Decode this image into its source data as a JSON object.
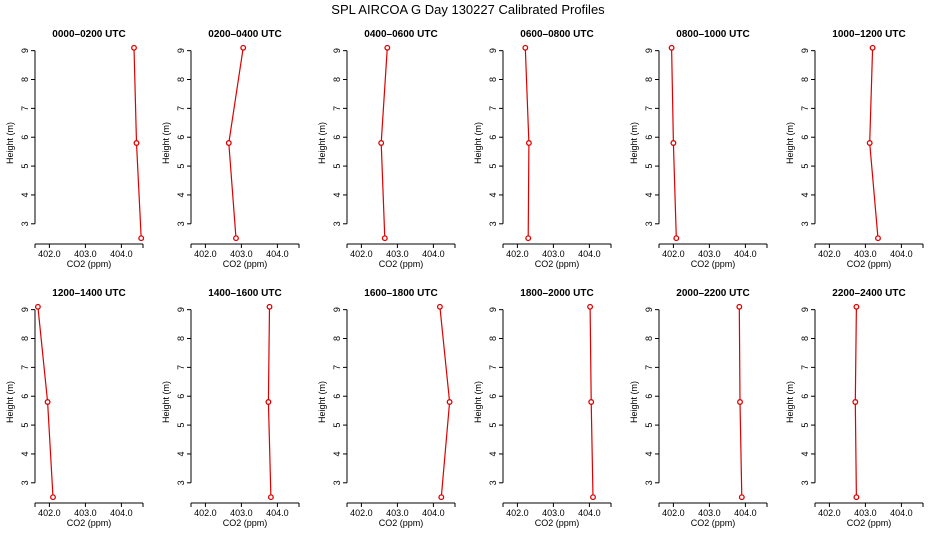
{
  "title": "SPL AIRCOA G  Day 130227  Calibrated Profiles",
  "colors": {
    "series": "#dd0000"
  },
  "chart_data": [
    {
      "type": "line",
      "title": "0000–0200 UTC",
      "xlabel": "CO2 (ppm)",
      "ylabel": "Height (m)",
      "xlim": [
        401.6,
        404.6
      ],
      "ylim": [
        2.3,
        9.3
      ],
      "xticks": [
        402.0,
        403.0,
        404.0
      ],
      "xtick_labels": [
        "402.0",
        "403.0",
        "404.0"
      ],
      "yticks": [
        3,
        4,
        5,
        6,
        7,
        8,
        9
      ],
      "ytick_labels": [
        "3",
        "4",
        "5",
        "6",
        "7",
        "8",
        "9"
      ],
      "series": [
        {
          "x": [
            404.55,
            404.42,
            404.35
          ],
          "y": [
            2.5,
            5.8,
            9.1
          ]
        }
      ]
    },
    {
      "type": "line",
      "title": "0200–0400 UTC",
      "xlabel": "CO2 (ppm)",
      "ylabel": "Height (m)",
      "xlim": [
        401.6,
        404.6
      ],
      "ylim": [
        2.3,
        9.3
      ],
      "xticks": [
        402.0,
        403.0,
        404.0
      ],
      "xtick_labels": [
        "402.0",
        "403.0",
        "404.0"
      ],
      "yticks": [
        3,
        4,
        5,
        6,
        7,
        8,
        9
      ],
      "ytick_labels": [
        "3",
        "4",
        "5",
        "6",
        "7",
        "8",
        "9"
      ],
      "series": [
        {
          "x": [
            402.85,
            402.65,
            403.05
          ],
          "y": [
            2.5,
            5.8,
            9.1
          ]
        }
      ]
    },
    {
      "type": "line",
      "title": "0400–0600 UTC",
      "xlabel": "CO2 (ppm)",
      "ylabel": "Height (m)",
      "xlim": [
        401.6,
        404.6
      ],
      "ylim": [
        2.3,
        9.3
      ],
      "xticks": [
        402.0,
        403.0,
        404.0
      ],
      "xtick_labels": [
        "402.0",
        "403.0",
        "404.0"
      ],
      "yticks": [
        3,
        4,
        5,
        6,
        7,
        8,
        9
      ],
      "ytick_labels": [
        "3",
        "4",
        "5",
        "6",
        "7",
        "8",
        "9"
      ],
      "series": [
        {
          "x": [
            402.65,
            402.55,
            402.72
          ],
          "y": [
            2.5,
            5.8,
            9.1
          ]
        }
      ]
    },
    {
      "type": "line",
      "title": "0600–0800 UTC",
      "xlabel": "CO2 (ppm)",
      "ylabel": "Height (m)",
      "xlim": [
        401.6,
        404.6
      ],
      "ylim": [
        2.3,
        9.3
      ],
      "xticks": [
        402.0,
        403.0,
        404.0
      ],
      "xtick_labels": [
        "402.0",
        "403.0",
        "404.0"
      ],
      "yticks": [
        3,
        4,
        5,
        6,
        7,
        8,
        9
      ],
      "ytick_labels": [
        "3",
        "4",
        "5",
        "6",
        "7",
        "8",
        "9"
      ],
      "series": [
        {
          "x": [
            402.3,
            402.32,
            402.22
          ],
          "y": [
            2.5,
            5.8,
            9.1
          ]
        }
      ]
    },
    {
      "type": "line",
      "title": "0800–1000 UTC",
      "xlabel": "CO2 (ppm)",
      "ylabel": "Height (m)",
      "xlim": [
        401.6,
        404.6
      ],
      "ylim": [
        2.3,
        9.3
      ],
      "xticks": [
        402.0,
        403.0,
        404.0
      ],
      "xtick_labels": [
        "402.0",
        "403.0",
        "404.0"
      ],
      "yticks": [
        3,
        4,
        5,
        6,
        7,
        8,
        9
      ],
      "ytick_labels": [
        "3",
        "4",
        "5",
        "6",
        "7",
        "8",
        "9"
      ],
      "series": [
        {
          "x": [
            402.08,
            402.0,
            401.95
          ],
          "y": [
            2.5,
            5.8,
            9.1
          ]
        }
      ]
    },
    {
      "type": "line",
      "title": "1000–1200 UTC",
      "xlabel": "CO2 (ppm)",
      "ylabel": "Height (m)",
      "xlim": [
        401.6,
        404.6
      ],
      "ylim": [
        2.3,
        9.3
      ],
      "xticks": [
        402.0,
        403.0,
        404.0
      ],
      "xtick_labels": [
        "402.0",
        "403.0",
        "404.0"
      ],
      "yticks": [
        3,
        4,
        5,
        6,
        7,
        8,
        9
      ],
      "ytick_labels": [
        "3",
        "4",
        "5",
        "6",
        "7",
        "8",
        "9"
      ],
      "series": [
        {
          "x": [
            403.35,
            403.12,
            403.2
          ],
          "y": [
            2.5,
            5.8,
            9.1
          ]
        }
      ]
    },
    {
      "type": "line",
      "title": "1200–1400 UTC",
      "xlabel": "CO2 (ppm)",
      "ylabel": "Height (m)",
      "xlim": [
        401.6,
        404.6
      ],
      "ylim": [
        2.3,
        9.3
      ],
      "xticks": [
        402.0,
        403.0,
        404.0
      ],
      "xtick_labels": [
        "402.0",
        "403.0",
        "404.0"
      ],
      "yticks": [
        3,
        4,
        5,
        6,
        7,
        8,
        9
      ],
      "ytick_labels": [
        "3",
        "4",
        "5",
        "6",
        "7",
        "8",
        "9"
      ],
      "series": [
        {
          "x": [
            402.1,
            401.95,
            401.68
          ],
          "y": [
            2.5,
            5.8,
            9.1
          ]
        }
      ]
    },
    {
      "type": "line",
      "title": "1400–1600 UTC",
      "xlabel": "CO2 (ppm)",
      "ylabel": "Height (m)",
      "xlim": [
        401.6,
        404.6
      ],
      "ylim": [
        2.3,
        9.3
      ],
      "xticks": [
        402.0,
        403.0,
        404.0
      ],
      "xtick_labels": [
        "402.0",
        "403.0",
        "404.0"
      ],
      "yticks": [
        3,
        4,
        5,
        6,
        7,
        8,
        9
      ],
      "ytick_labels": [
        "3",
        "4",
        "5",
        "6",
        "7",
        "8",
        "9"
      ],
      "series": [
        {
          "x": [
            403.82,
            403.75,
            403.78
          ],
          "y": [
            2.5,
            5.8,
            9.1
          ]
        }
      ]
    },
    {
      "type": "line",
      "title": "1600–1800 UTC",
      "xlabel": "CO2 (ppm)",
      "ylabel": "Height (m)",
      "xlim": [
        401.6,
        404.6
      ],
      "ylim": [
        2.3,
        9.3
      ],
      "xticks": [
        402.0,
        403.0,
        404.0
      ],
      "xtick_labels": [
        "402.0",
        "403.0",
        "404.0"
      ],
      "yticks": [
        3,
        4,
        5,
        6,
        7,
        8,
        9
      ],
      "ytick_labels": [
        "3",
        "4",
        "5",
        "6",
        "7",
        "8",
        "9"
      ],
      "series": [
        {
          "x": [
            404.22,
            404.45,
            404.18
          ],
          "y": [
            2.5,
            5.8,
            9.1
          ]
        }
      ]
    },
    {
      "type": "line",
      "title": "1800–2000 UTC",
      "xlabel": "CO2 (ppm)",
      "ylabel": "Height (m)",
      "xlim": [
        401.6,
        404.6
      ],
      "ylim": [
        2.3,
        9.3
      ],
      "xticks": [
        402.0,
        403.0,
        404.0
      ],
      "xtick_labels": [
        "402.0",
        "403.0",
        "404.0"
      ],
      "yticks": [
        3,
        4,
        5,
        6,
        7,
        8,
        9
      ],
      "ytick_labels": [
        "3",
        "4",
        "5",
        "6",
        "7",
        "8",
        "9"
      ],
      "series": [
        {
          "x": [
            404.1,
            404.05,
            404.02
          ],
          "y": [
            2.5,
            5.8,
            9.1
          ]
        }
      ]
    },
    {
      "type": "line",
      "title": "2000–2200 UTC",
      "xlabel": "CO2 (ppm)",
      "ylabel": "Height (m)",
      "xlim": [
        401.6,
        404.6
      ],
      "ylim": [
        2.3,
        9.3
      ],
      "xticks": [
        402.0,
        403.0,
        404.0
      ],
      "xtick_labels": [
        "402.0",
        "403.0",
        "404.0"
      ],
      "yticks": [
        3,
        4,
        5,
        6,
        7,
        8,
        9
      ],
      "ytick_labels": [
        "3",
        "4",
        "5",
        "6",
        "7",
        "8",
        "9"
      ],
      "series": [
        {
          "x": [
            403.9,
            403.85,
            403.83
          ],
          "y": [
            2.5,
            5.8,
            9.1
          ]
        }
      ]
    },
    {
      "type": "line",
      "title": "2200–2400 UTC",
      "xlabel": "CO2 (ppm)",
      "ylabel": "Height (m)",
      "xlim": [
        401.6,
        404.6
      ],
      "ylim": [
        2.3,
        9.3
      ],
      "xticks": [
        402.0,
        403.0,
        404.0
      ],
      "xtick_labels": [
        "402.0",
        "403.0",
        "404.0"
      ],
      "yticks": [
        3,
        4,
        5,
        6,
        7,
        8,
        9
      ],
      "ytick_labels": [
        "3",
        "4",
        "5",
        "6",
        "7",
        "8",
        "9"
      ],
      "series": [
        {
          "x": [
            402.75,
            402.72,
            402.75
          ],
          "y": [
            2.5,
            5.8,
            9.1
          ]
        }
      ]
    }
  ]
}
